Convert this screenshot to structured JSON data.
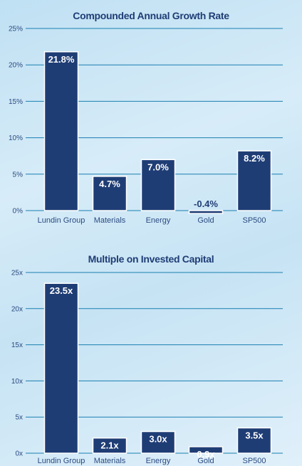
{
  "chart_data": [
    {
      "type": "bar",
      "title": "Compounded Annual Growth Rate",
      "categories": [
        "Lundin Group",
        "Materials",
        "Energy",
        "Gold",
        "SP500"
      ],
      "values": [
        21.8,
        4.7,
        7.0,
        -0.4,
        8.2
      ],
      "data_labels": [
        "21.8%",
        "4.7%",
        "7.0%",
        "-0.4%",
        "8.2%"
      ],
      "ylim": [
        0,
        25
      ],
      "yticks": [
        "0%",
        "5%",
        "10%",
        "15%",
        "20%",
        "25%"
      ],
      "grid": true,
      "bar_color": "#1f3d75"
    },
    {
      "type": "bar",
      "title": "Multiple on Invested Capital",
      "categories": [
        "Lundin Group",
        "Materials",
        "Energy",
        "Gold",
        "SP500"
      ],
      "values": [
        23.5,
        2.1,
        3.0,
        0.9,
        3.5
      ],
      "data_labels": [
        "23.5x",
        "2.1x",
        "3.0x",
        "0.9x",
        "3.5x"
      ],
      "ylim": [
        0,
        25
      ],
      "yticks": [
        "0x",
        "5x",
        "10x",
        "15x",
        "20x",
        "25x"
      ],
      "grid": true,
      "bar_color": "#1f3d75"
    }
  ],
  "colors": {
    "bar": "#1f3d75",
    "grid": "#1a7fb0",
    "text": "#2a4a80"
  }
}
